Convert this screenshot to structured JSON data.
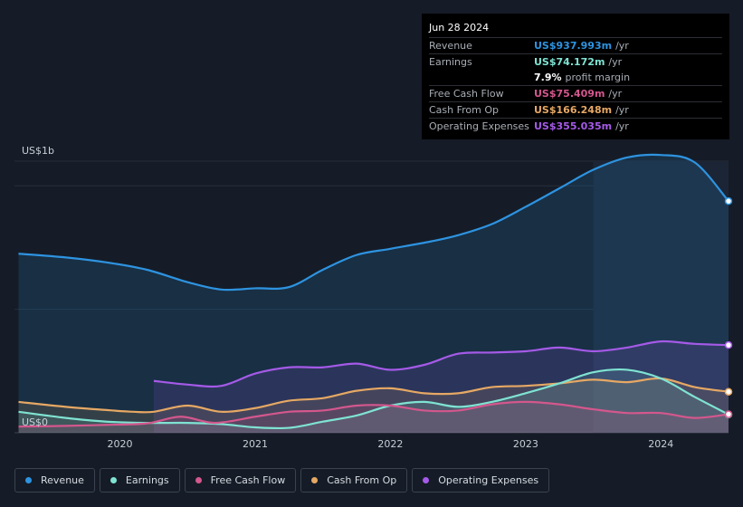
{
  "tooltip": {
    "date": "Jun 28 2024",
    "rows": [
      {
        "label": "Revenue",
        "value": "US$937.993m",
        "unit": "/yr",
        "color": "#2e93e0"
      },
      {
        "label": "Earnings",
        "value": "US$74.172m",
        "unit": "/yr",
        "color": "#7fe3d2"
      },
      {
        "label": "",
        "value": "7.9%",
        "unit": "profit margin",
        "color": "#ffffff"
      },
      {
        "label": "Free Cash Flow",
        "value": "US$75.409m",
        "unit": "/yr",
        "color": "#d4578d"
      },
      {
        "label": "Cash From Op",
        "value": "US$166.248m",
        "unit": "/yr",
        "color": "#e6a864"
      },
      {
        "label": "Operating Expenses",
        "value": "US$355.035m",
        "unit": "/yr",
        "color": "#a55ae8"
      }
    ]
  },
  "legend": [
    {
      "label": "Revenue",
      "color": "#2e93e0"
    },
    {
      "label": "Earnings",
      "color": "#7fe3d2"
    },
    {
      "label": "Free Cash Flow",
      "color": "#d4578d"
    },
    {
      "label": "Cash From Op",
      "color": "#e6a864"
    },
    {
      "label": "Operating Expenses",
      "color": "#a55ae8"
    }
  ],
  "chart_data": {
    "type": "area",
    "y_top_label": "US$1b",
    "y_bottom_label": "US$0",
    "ylim": [
      0,
      1100
    ],
    "xlim": [
      2019.22,
      2024.5
    ],
    "xticks": [
      "2020",
      "2021",
      "2022",
      "2023",
      "2024"
    ],
    "forecast_start": 2023.5,
    "grid": true,
    "series": [
      {
        "name": "Revenue",
        "color": "#2e93e0",
        "x": [
          2019.25,
          2019.6,
          2019.9,
          2020.2,
          2020.5,
          2020.75,
          2021.0,
          2021.25,
          2021.5,
          2021.75,
          2022.0,
          2022.3,
          2022.5,
          2022.75,
          2023.0,
          2023.25,
          2023.5,
          2023.75,
          2024.0,
          2024.25,
          2024.5
        ],
        "values": [
          725,
          710,
          690,
          660,
          610,
          580,
          585,
          590,
          660,
          720,
          745,
          775,
          800,
          845,
          915,
          990,
          1065,
          1115,
          1125,
          1095,
          938
        ]
      },
      {
        "name": "Operating Expenses",
        "color": "#a55ae8",
        "x": [
          2020.25,
          2020.5,
          2020.75,
          2021.0,
          2021.25,
          2021.5,
          2021.75,
          2022.0,
          2022.25,
          2022.5,
          2022.75,
          2023.0,
          2023.25,
          2023.5,
          2023.75,
          2024.0,
          2024.25,
          2024.5
        ],
        "values": [
          210,
          195,
          190,
          240,
          265,
          265,
          280,
          255,
          275,
          320,
          325,
          330,
          345,
          330,
          345,
          370,
          360,
          355
        ]
      },
      {
        "name": "Cash From Op",
        "color": "#e6a864",
        "x": [
          2019.25,
          2019.6,
          2019.9,
          2020.1,
          2020.25,
          2020.5,
          2020.75,
          2021.0,
          2021.25,
          2021.5,
          2021.75,
          2022.0,
          2022.25,
          2022.5,
          2022.75,
          2023.0,
          2023.25,
          2023.5,
          2023.75,
          2024.0,
          2024.25,
          2024.5
        ],
        "values": [
          125,
          105,
          92,
          85,
          85,
          110,
          85,
          100,
          130,
          140,
          170,
          180,
          160,
          160,
          185,
          190,
          200,
          215,
          205,
          220,
          185,
          166
        ]
      },
      {
        "name": "Earnings",
        "color": "#7fe3d2",
        "x": [
          2019.25,
          2019.6,
          2019.9,
          2020.2,
          2020.5,
          2020.75,
          2021.0,
          2021.25,
          2021.5,
          2021.75,
          2022.0,
          2022.25,
          2022.5,
          2022.75,
          2023.0,
          2023.25,
          2023.5,
          2023.75,
          2024.0,
          2024.25,
          2024.5
        ],
        "values": [
          85,
          60,
          45,
          40,
          40,
          35,
          22,
          20,
          45,
          70,
          110,
          125,
          105,
          125,
          160,
          200,
          245,
          255,
          220,
          145,
          74
        ]
      },
      {
        "name": "Free Cash Flow",
        "color": "#d4578d",
        "x": [
          2019.25,
          2019.6,
          2019.9,
          2020.2,
          2020.45,
          2020.7,
          2021.0,
          2021.25,
          2021.5,
          2021.75,
          2022.0,
          2022.25,
          2022.5,
          2022.75,
          2023.0,
          2023.25,
          2023.5,
          2023.75,
          2024.0,
          2024.25,
          2024.5
        ],
        "values": [
          25,
          28,
          32,
          38,
          65,
          40,
          65,
          85,
          90,
          110,
          110,
          90,
          90,
          115,
          125,
          115,
          95,
          80,
          80,
          60,
          75
        ]
      }
    ]
  }
}
